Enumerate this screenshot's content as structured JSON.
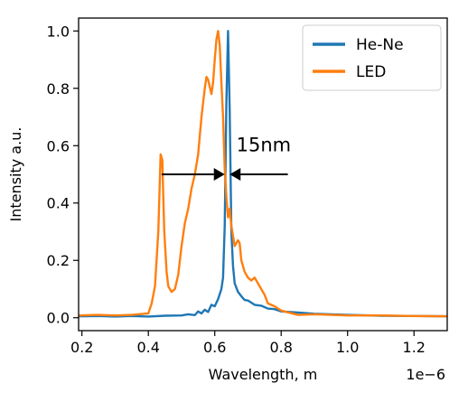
{
  "chart_data": {
    "type": "line",
    "title": "",
    "xlabel": "Wavelength, m",
    "ylabel": "Intensity a.u.",
    "x_offset_label": "1e−6",
    "xlim": [
      0.19,
      1.3
    ],
    "ylim": [
      -0.045,
      1.045
    ],
    "x_ticks": [
      0.2,
      0.4,
      0.6,
      0.8,
      1.0,
      1.2
    ],
    "x_tick_labels": [
      "0.2",
      "0.4",
      "0.6",
      "0.8",
      "1.0",
      "1.2"
    ],
    "y_ticks": [
      0.0,
      0.2,
      0.4,
      0.6,
      0.8,
      1.0
    ],
    "y_tick_labels": [
      "0.0",
      "0.2",
      "0.4",
      "0.6",
      "0.8",
      "1.0"
    ],
    "grid": false,
    "legend_position": "top-right",
    "series": [
      {
        "name": "He-Ne",
        "color": "#1f77b4",
        "points": [
          [
            0.19,
            0.005
          ],
          [
            0.25,
            0.006
          ],
          [
            0.3,
            0.004
          ],
          [
            0.35,
            0.006
          ],
          [
            0.4,
            0.004
          ],
          [
            0.45,
            0.007
          ],
          [
            0.5,
            0.008
          ],
          [
            0.52,
            0.012
          ],
          [
            0.54,
            0.009
          ],
          [
            0.55,
            0.022
          ],
          [
            0.56,
            0.015
          ],
          [
            0.57,
            0.028
          ],
          [
            0.58,
            0.02
          ],
          [
            0.59,
            0.045
          ],
          [
            0.6,
            0.04
          ],
          [
            0.61,
            0.065
          ],
          [
            0.62,
            0.1
          ],
          [
            0.625,
            0.14
          ],
          [
            0.63,
            0.32
          ],
          [
            0.635,
            0.75
          ],
          [
            0.64,
            1.0
          ],
          [
            0.645,
            0.72
          ],
          [
            0.65,
            0.3
          ],
          [
            0.655,
            0.18
          ],
          [
            0.66,
            0.12
          ],
          [
            0.67,
            0.09
          ],
          [
            0.68,
            0.075
          ],
          [
            0.69,
            0.062
          ],
          [
            0.7,
            0.06
          ],
          [
            0.72,
            0.045
          ],
          [
            0.74,
            0.042
          ],
          [
            0.76,
            0.032
          ],
          [
            0.78,
            0.03
          ],
          [
            0.8,
            0.022
          ],
          [
            0.85,
            0.018
          ],
          [
            0.9,
            0.014
          ],
          [
            0.95,
            0.012
          ],
          [
            1.0,
            0.01
          ],
          [
            1.1,
            0.007
          ],
          [
            1.2,
            0.006
          ],
          [
            1.3,
            0.005
          ]
        ]
      },
      {
        "name": "LED",
        "color": "#ff7f0e",
        "points": [
          [
            0.19,
            0.008
          ],
          [
            0.25,
            0.01
          ],
          [
            0.3,
            0.008
          ],
          [
            0.35,
            0.01
          ],
          [
            0.38,
            0.013
          ],
          [
            0.4,
            0.015
          ],
          [
            0.41,
            0.05
          ],
          [
            0.42,
            0.11
          ],
          [
            0.43,
            0.3
          ],
          [
            0.437,
            0.57
          ],
          [
            0.442,
            0.55
          ],
          [
            0.448,
            0.3
          ],
          [
            0.455,
            0.16
          ],
          [
            0.46,
            0.11
          ],
          [
            0.47,
            0.09
          ],
          [
            0.48,
            0.1
          ],
          [
            0.49,
            0.15
          ],
          [
            0.5,
            0.25
          ],
          [
            0.51,
            0.33
          ],
          [
            0.52,
            0.38
          ],
          [
            0.53,
            0.45
          ],
          [
            0.54,
            0.5
          ],
          [
            0.55,
            0.57
          ],
          [
            0.56,
            0.7
          ],
          [
            0.57,
            0.8
          ],
          [
            0.575,
            0.84
          ],
          [
            0.58,
            0.83
          ],
          [
            0.59,
            0.78
          ],
          [
            0.595,
            0.82
          ],
          [
            0.6,
            0.9
          ],
          [
            0.605,
            0.97
          ],
          [
            0.61,
            1.0
          ],
          [
            0.615,
            0.95
          ],
          [
            0.62,
            0.82
          ],
          [
            0.625,
            0.7
          ],
          [
            0.63,
            0.52
          ],
          [
            0.635,
            0.42
          ],
          [
            0.64,
            0.35
          ],
          [
            0.645,
            0.38
          ],
          [
            0.65,
            0.32
          ],
          [
            0.66,
            0.25
          ],
          [
            0.67,
            0.27
          ],
          [
            0.675,
            0.26
          ],
          [
            0.68,
            0.2
          ],
          [
            0.69,
            0.16
          ],
          [
            0.7,
            0.14
          ],
          [
            0.71,
            0.13
          ],
          [
            0.72,
            0.14
          ],
          [
            0.73,
            0.12
          ],
          [
            0.74,
            0.1
          ],
          [
            0.75,
            0.08
          ],
          [
            0.76,
            0.05
          ],
          [
            0.78,
            0.04
          ],
          [
            0.8,
            0.025
          ],
          [
            0.85,
            0.01
          ],
          [
            0.9,
            0.012
          ],
          [
            1.0,
            0.008
          ],
          [
            1.1,
            0.008
          ],
          [
            1.2,
            0.006
          ],
          [
            1.3,
            0.005
          ]
        ]
      }
    ],
    "annotations": [
      {
        "text": "15nm",
        "x": 0.665,
        "y": 0.58
      },
      {
        "type": "arrow",
        "from": [
          0.44,
          0.5
        ],
        "to": [
          0.63,
          0.5
        ]
      },
      {
        "type": "arrow",
        "from": [
          0.82,
          0.5
        ],
        "to": [
          0.645,
          0.5
        ]
      }
    ]
  }
}
